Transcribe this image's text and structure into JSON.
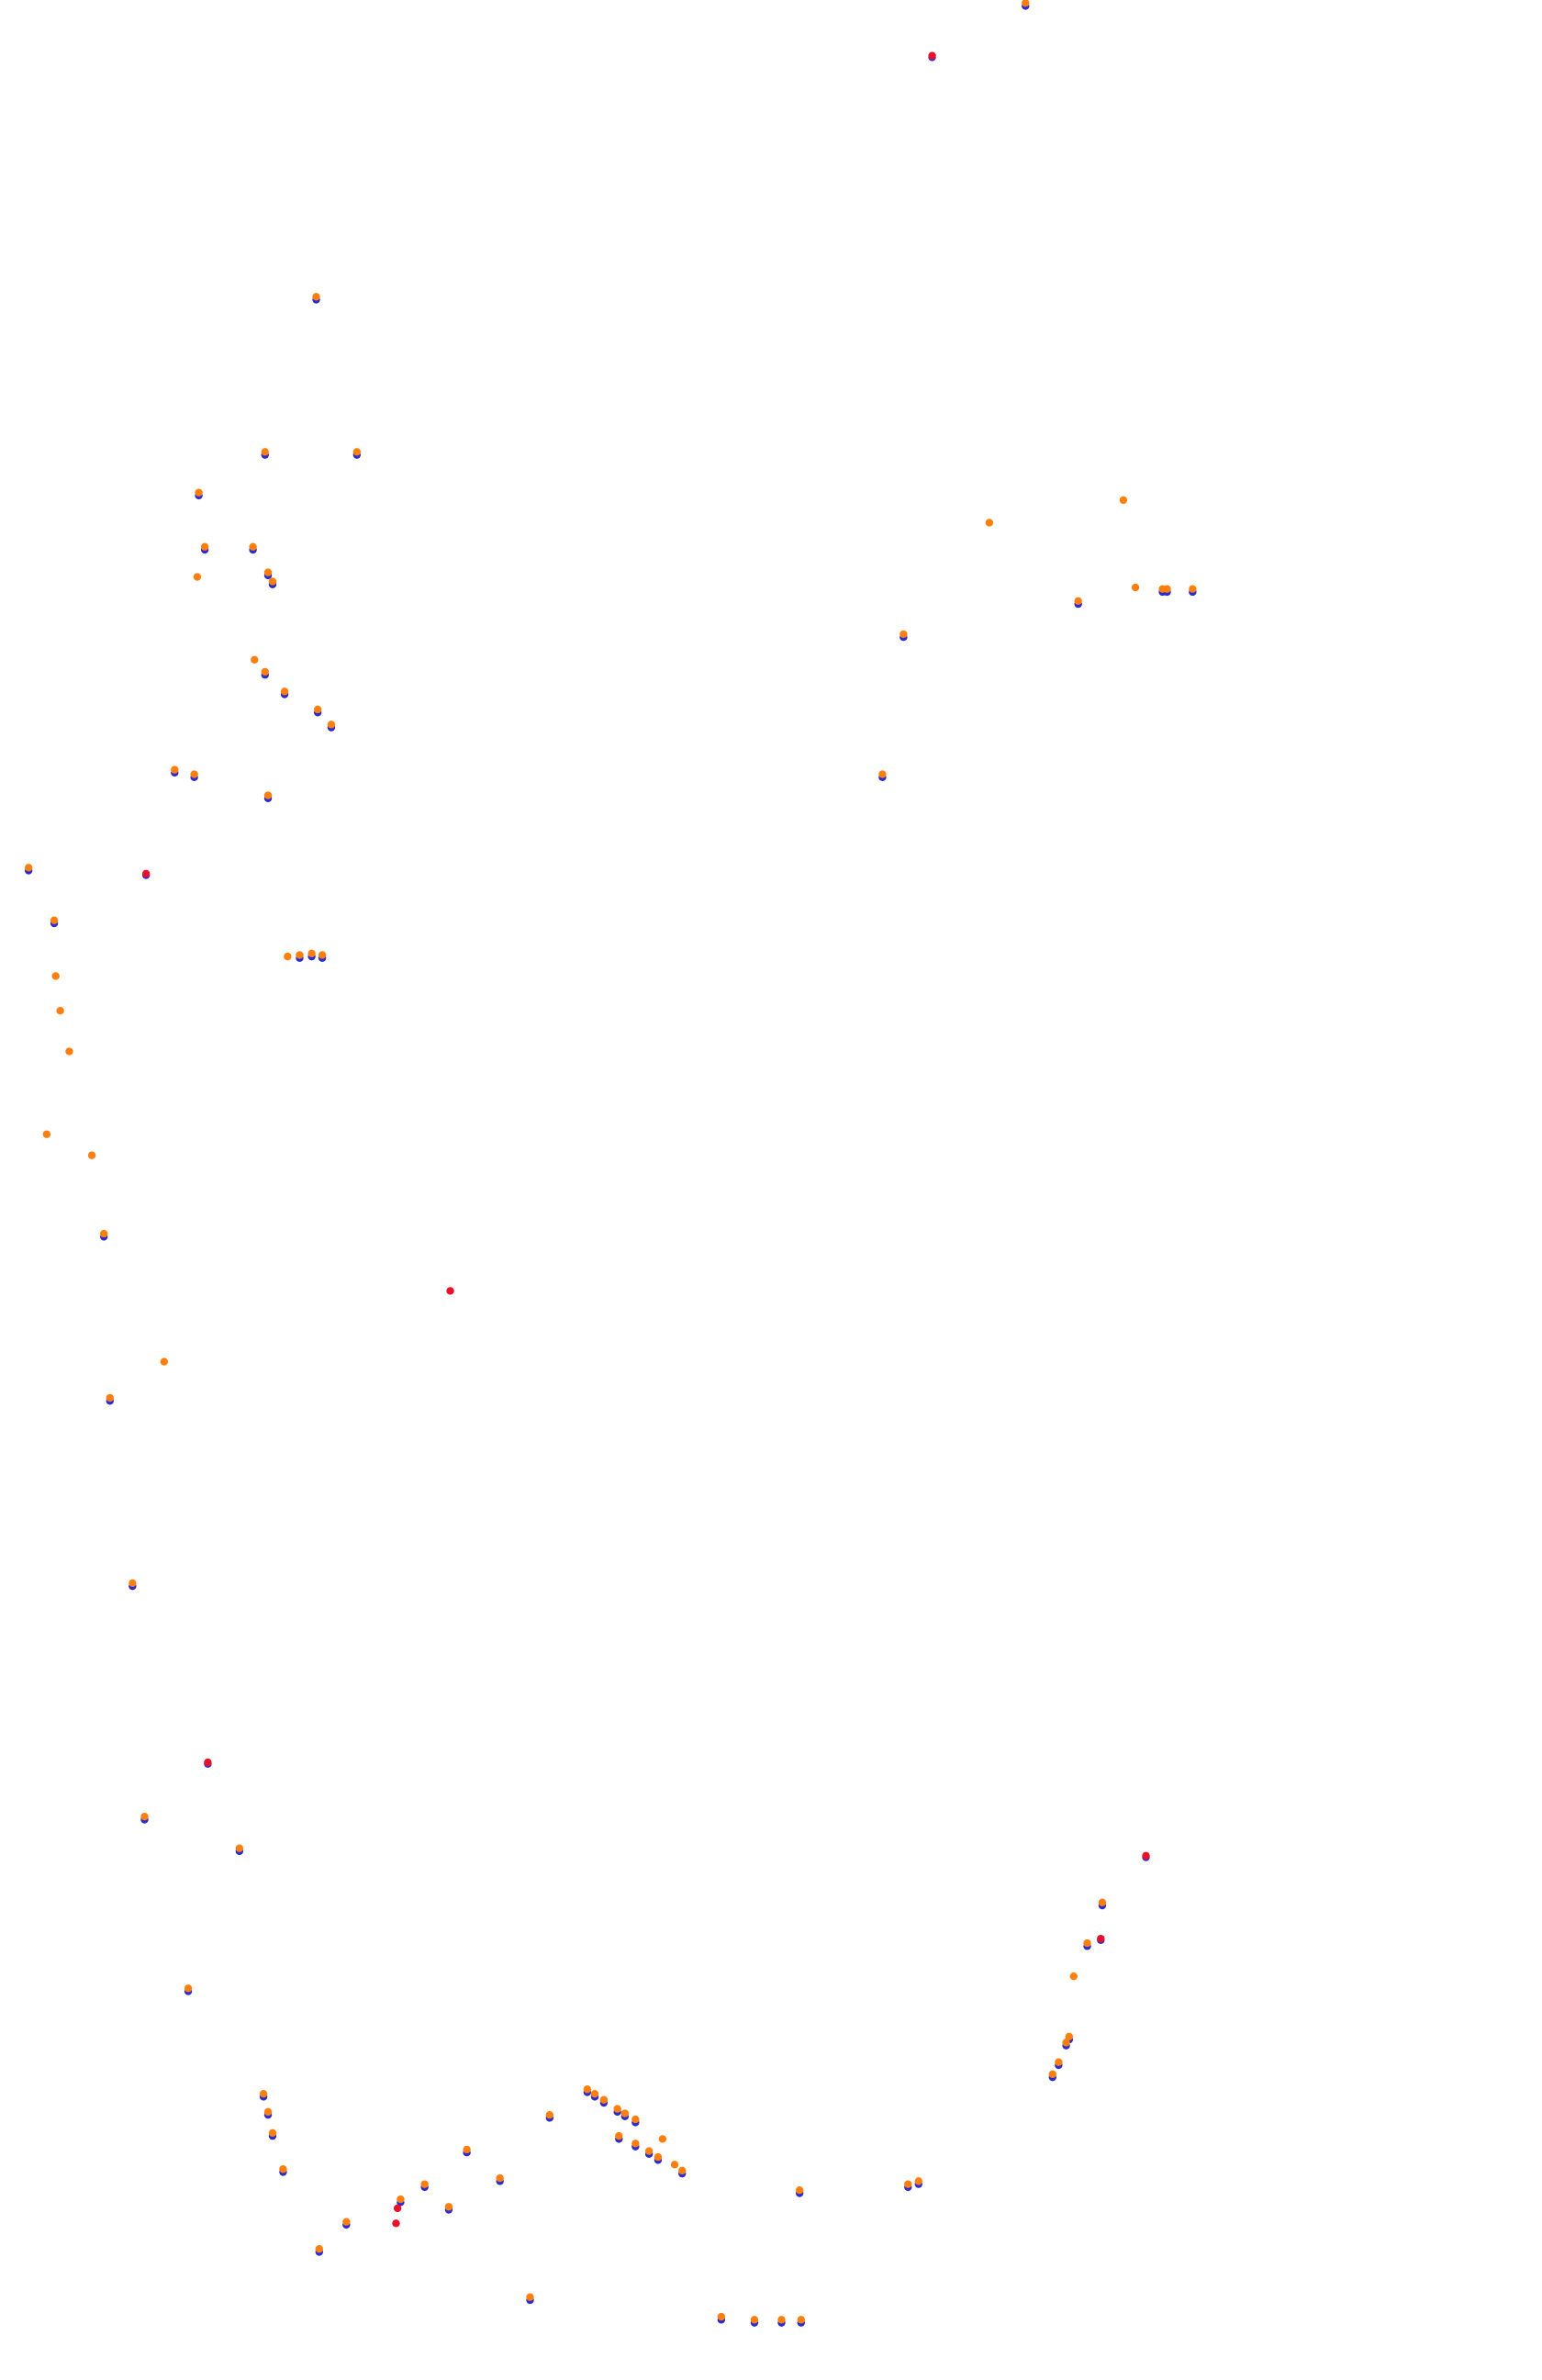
{
  "chart_data": {
    "type": "scatter",
    "xlim": [
      0,
      1024
    ],
    "ylim": [
      1580,
      0
    ],
    "series": [
      {
        "color": "#2b2bd0",
        "x": [
          681,
          210,
          176,
          237,
          132,
          136,
          168,
          178,
          181,
          176,
          189,
          211,
          220,
          116,
          129,
          178,
          19,
          36,
          199,
          207,
          214,
          69,
          73,
          88,
          96,
          159,
          125,
          716,
          772,
          775,
          792,
          600,
          586,
          732,
          722,
          710,
          708,
          703,
          699,
          175,
          178,
          181,
          188,
          212,
          230,
          266,
          282,
          298,
          310,
          332,
          352,
          365,
          390,
          395,
          401,
          410,
          415,
          422,
          411,
          422,
          431,
          437,
          453,
          479,
          501,
          519,
          532,
          531,
          603,
          610,
          619,
          97,
          138,
          761,
          731
        ],
        "values": [
          4,
          199,
          302,
          302,
          329,
          365,
          365,
          382,
          388,
          448,
          461,
          473,
          483,
          513,
          516,
          530,
          578,
          613,
          636,
          635,
          636,
          821,
          930,
          1053,
          1208,
          1229,
          1322,
          401,
          393,
          393,
          393,
          423,
          516,
          1265,
          1292,
          1354,
          1358,
          1371,
          1379,
          1392,
          1404,
          1418,
          1442,
          1495,
          1477,
          1462,
          1452,
          1467,
          1429,
          1448,
          1527,
          1406,
          1389,
          1392,
          1396,
          1402,
          1405,
          1409,
          1420,
          1425,
          1430,
          1434,
          1443,
          1540,
          1542,
          1542,
          1542,
          1456,
          1452,
          1450,
          38,
          581,
          1171,
          1233,
          1288
        ]
      },
      {
        "color": "#ff7f0e",
        "x": [
          681,
          210,
          176,
          237,
          132,
          136,
          168,
          178,
          181,
          176,
          189,
          211,
          220,
          116,
          129,
          178,
          19,
          36,
          199,
          207,
          214,
          69,
          73,
          88,
          96,
          159,
          125,
          716,
          772,
          775,
          792,
          600,
          586,
          732,
          722,
          710,
          708,
          703,
          699,
          175,
          178,
          181,
          188,
          212,
          230,
          266,
          282,
          298,
          310,
          332,
          352,
          365,
          390,
          395,
          401,
          410,
          415,
          422,
          411,
          422,
          431,
          437,
          453,
          479,
          501,
          519,
          532,
          531,
          603,
          610,
          131,
          169,
          191,
          37,
          40,
          46,
          31,
          61,
          109,
          657,
          746,
          754,
          713,
          440,
          448
        ],
        "values": [
          2,
          197,
          300,
          300,
          327,
          363,
          363,
          380,
          386,
          446,
          459,
          471,
          481,
          511,
          514,
          528,
          576,
          611,
          634,
          633,
          634,
          819,
          928,
          1051,
          1206,
          1227,
          1320,
          399,
          391,
          391,
          391,
          421,
          514,
          1263,
          1290,
          1352,
          1356,
          1369,
          1377,
          1390,
          1402,
          1416,
          1440,
          1493,
          1475,
          1460,
          1450,
          1465,
          1427,
          1446,
          1525,
          1404,
          1387,
          1390,
          1394,
          1400,
          1403,
          1407,
          1418,
          1423,
          1428,
          1432,
          1441,
          1538,
          1540,
          1540,
          1540,
          1454,
          1450,
          1448,
          383,
          438,
          635,
          648,
          671,
          698,
          753,
          767,
          904,
          347,
          332,
          390,
          1312,
          1420,
          1437
        ]
      },
      {
        "color": "#e8102a",
        "x": [
          619,
          97,
          299,
          138,
          761,
          731,
          264,
          263
        ],
        "values": [
          37,
          580,
          857,
          1170,
          1232,
          1287,
          1466,
          1476
        ]
      }
    ]
  }
}
